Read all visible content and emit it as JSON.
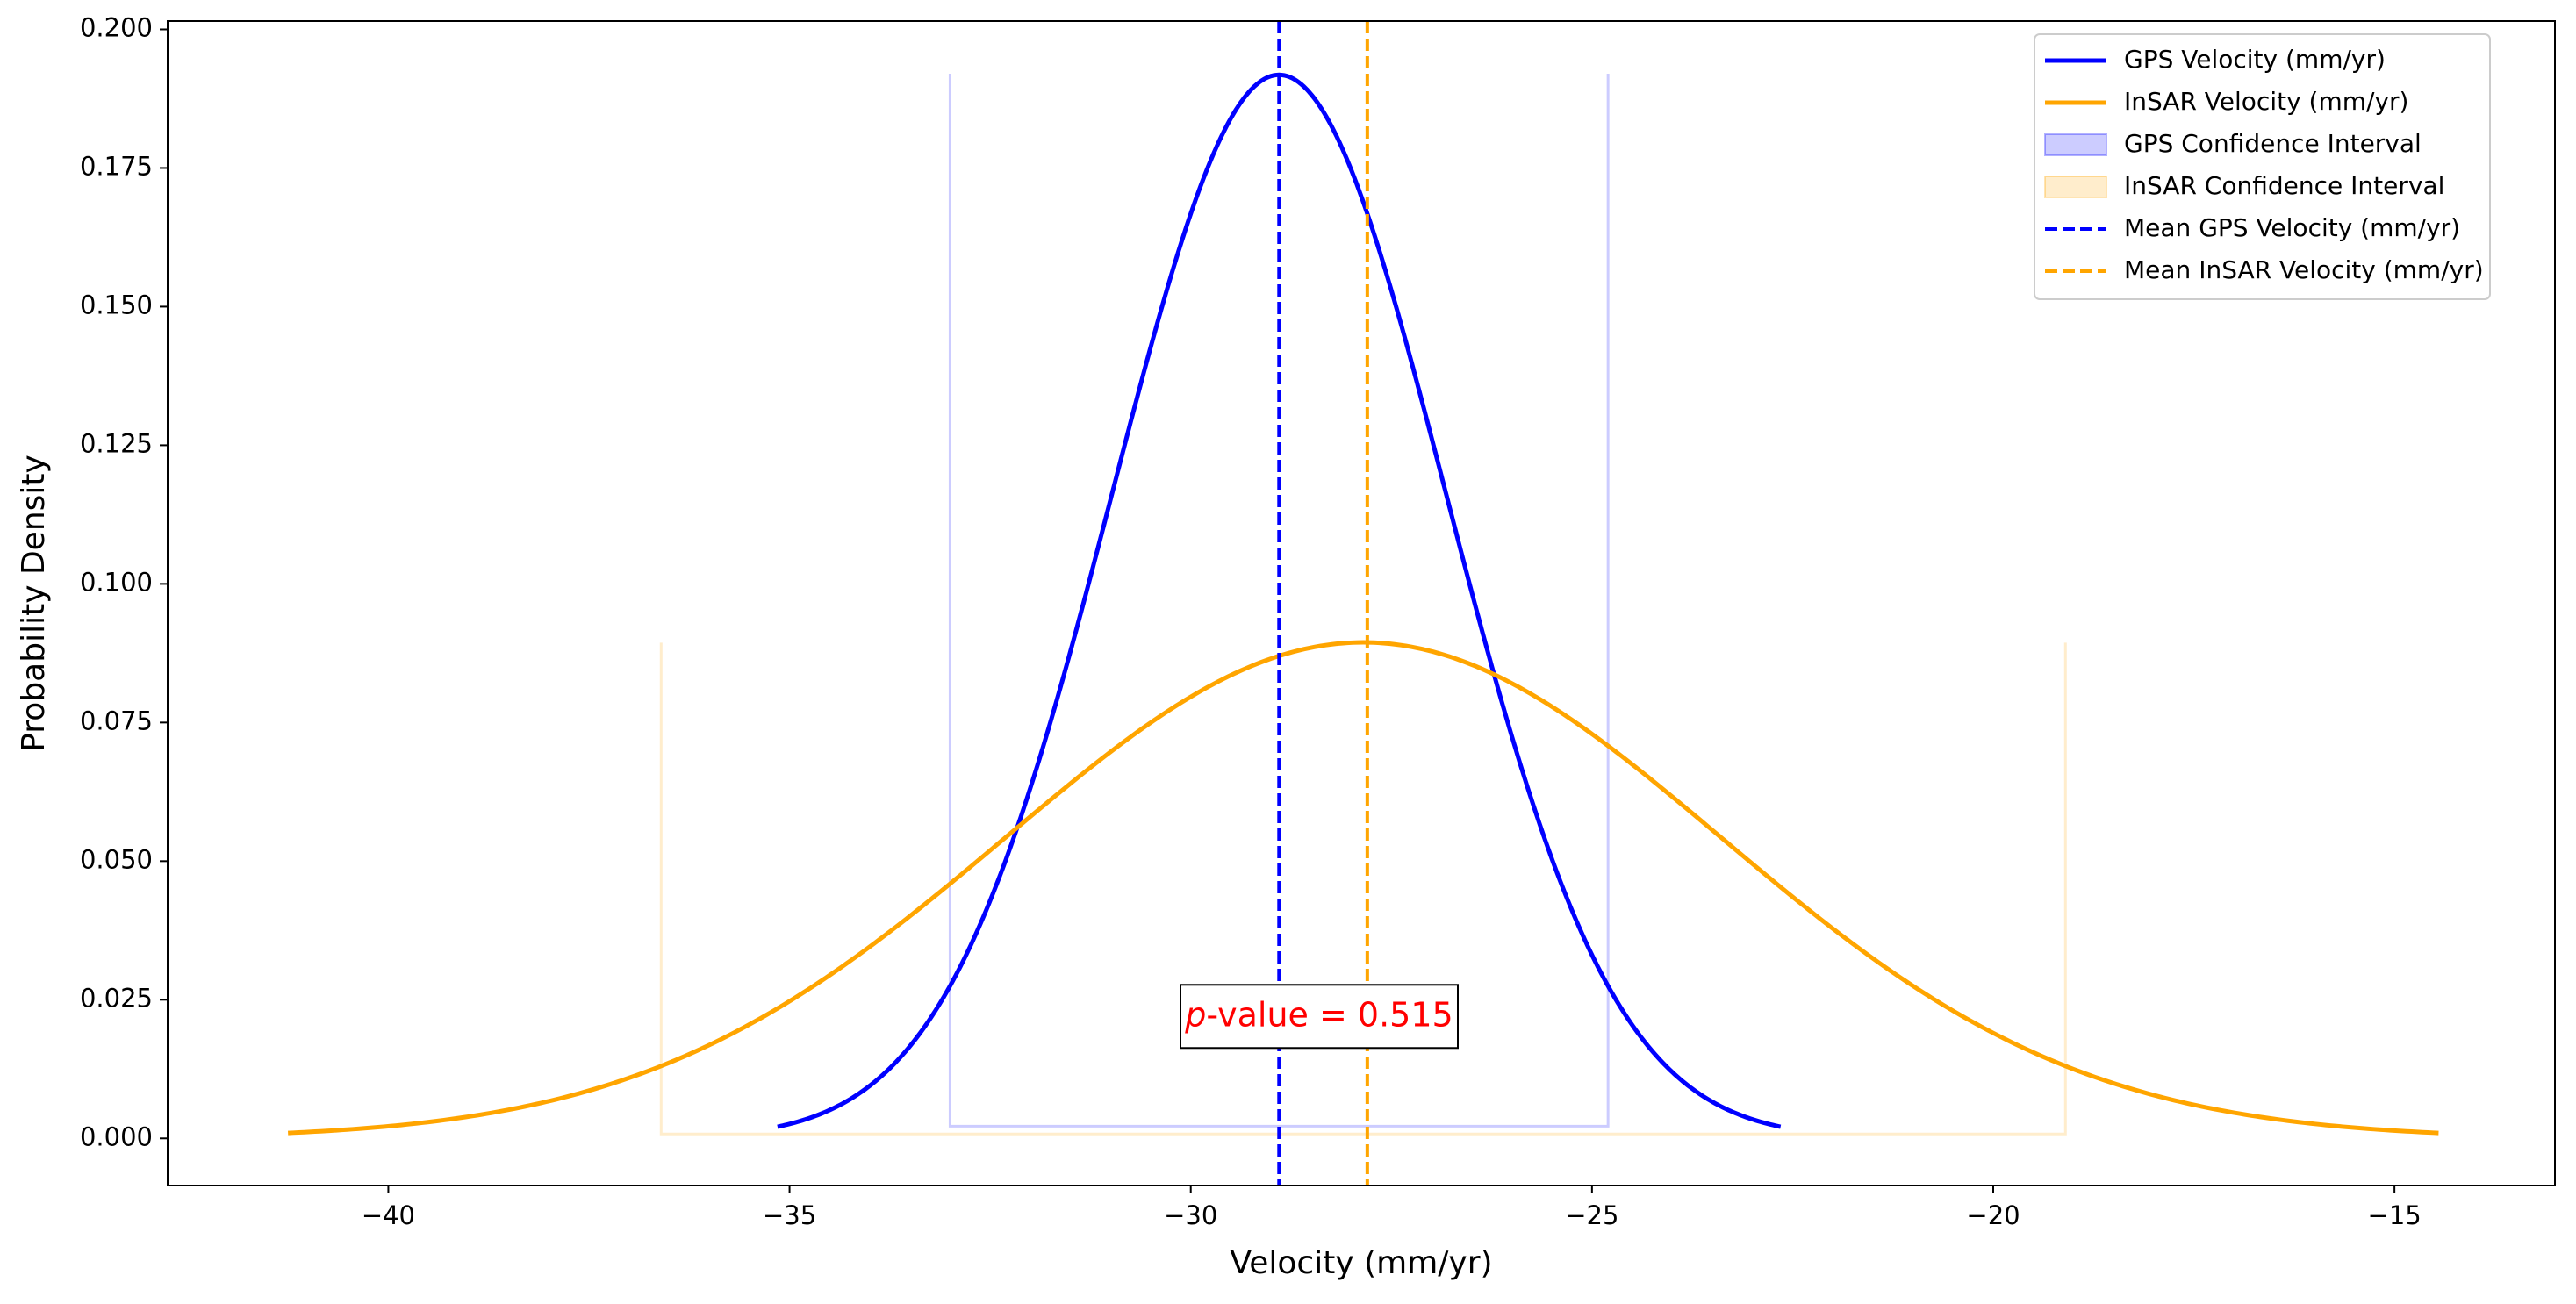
{
  "chart_data": {
    "type": "line",
    "title": "",
    "xlabel": "Velocity (mm/yr)",
    "ylabel": "Probability Density",
    "xlim": [
      -42.75,
      -13.0
    ],
    "ylim": [
      -0.0085,
      0.2015
    ],
    "xticks": [
      -40,
      -35,
      -30,
      -25,
      -20,
      -15
    ],
    "xtick_labels": [
      "−40",
      "−35",
      "−30",
      "−25",
      "−20",
      "−15"
    ],
    "yticks": [
      0.0,
      0.025,
      0.05,
      0.075,
      0.1,
      0.125,
      0.15,
      0.175,
      0.2
    ],
    "ytick_labels": [
      "0.000",
      "0.025",
      "0.050",
      "0.075",
      "0.100",
      "0.125",
      "0.150",
      "0.175",
      "0.200"
    ],
    "grid": false,
    "legend_position": "top-right",
    "series": [
      {
        "name": "GPS Velocity (mm/yr)",
        "kind": "normal-pdf",
        "mean": -28.9,
        "std": 2.08,
        "x_range": [
          -35.15,
          -22.65
        ],
        "color": "#0000ff"
      },
      {
        "name": "InSAR Velocity (mm/yr)",
        "kind": "normal-pdf",
        "mean": -27.85,
        "std": 4.46,
        "x_range": [
          -41.25,
          -14.45
        ],
        "color": "#ffa500"
      }
    ],
    "confidence_intervals": [
      {
        "name": "GPS Confidence Interval",
        "x": [
          -33.0,
          -24.8
        ],
        "y": [
          0.0022,
          0.192
        ],
        "color": "#0000ff",
        "alpha": 0.2
      },
      {
        "name": "InSAR Confidence Interval",
        "x": [
          -36.6,
          -19.1
        ],
        "y": [
          0.0008,
          0.0894
        ],
        "color": "#ffa500",
        "alpha": 0.2
      }
    ],
    "mean_lines": [
      {
        "name": "Mean GPS Velocity (mm/yr)",
        "x": -28.9,
        "color": "#0000ff",
        "style": "dashed"
      },
      {
        "name": "Mean InSAR Velocity (mm/yr)",
        "x": -27.8,
        "color": "#ffa500",
        "style": "dashed"
      }
    ],
    "annotation": {
      "prefix": "p",
      "text": "-value = 0.515",
      "x": -28.4,
      "y": 0.022,
      "color": "#ff0000"
    },
    "legend": [
      {
        "label": "GPS Velocity (mm/yr)",
        "kind": "line",
        "color": "#0000ff"
      },
      {
        "label": "InSAR Velocity (mm/yr)",
        "kind": "line",
        "color": "#ffa500"
      },
      {
        "label": "GPS Confidence Interval",
        "kind": "patch",
        "color": "#0000ff"
      },
      {
        "label": "InSAR Confidence Interval",
        "kind": "patch",
        "color": "#ffa500"
      },
      {
        "label": "Mean GPS Velocity (mm/yr)",
        "kind": "dashed",
        "color": "#0000ff"
      },
      {
        "label": "Mean InSAR Velocity (mm/yr)",
        "kind": "dashed",
        "color": "#ffa500"
      }
    ]
  }
}
